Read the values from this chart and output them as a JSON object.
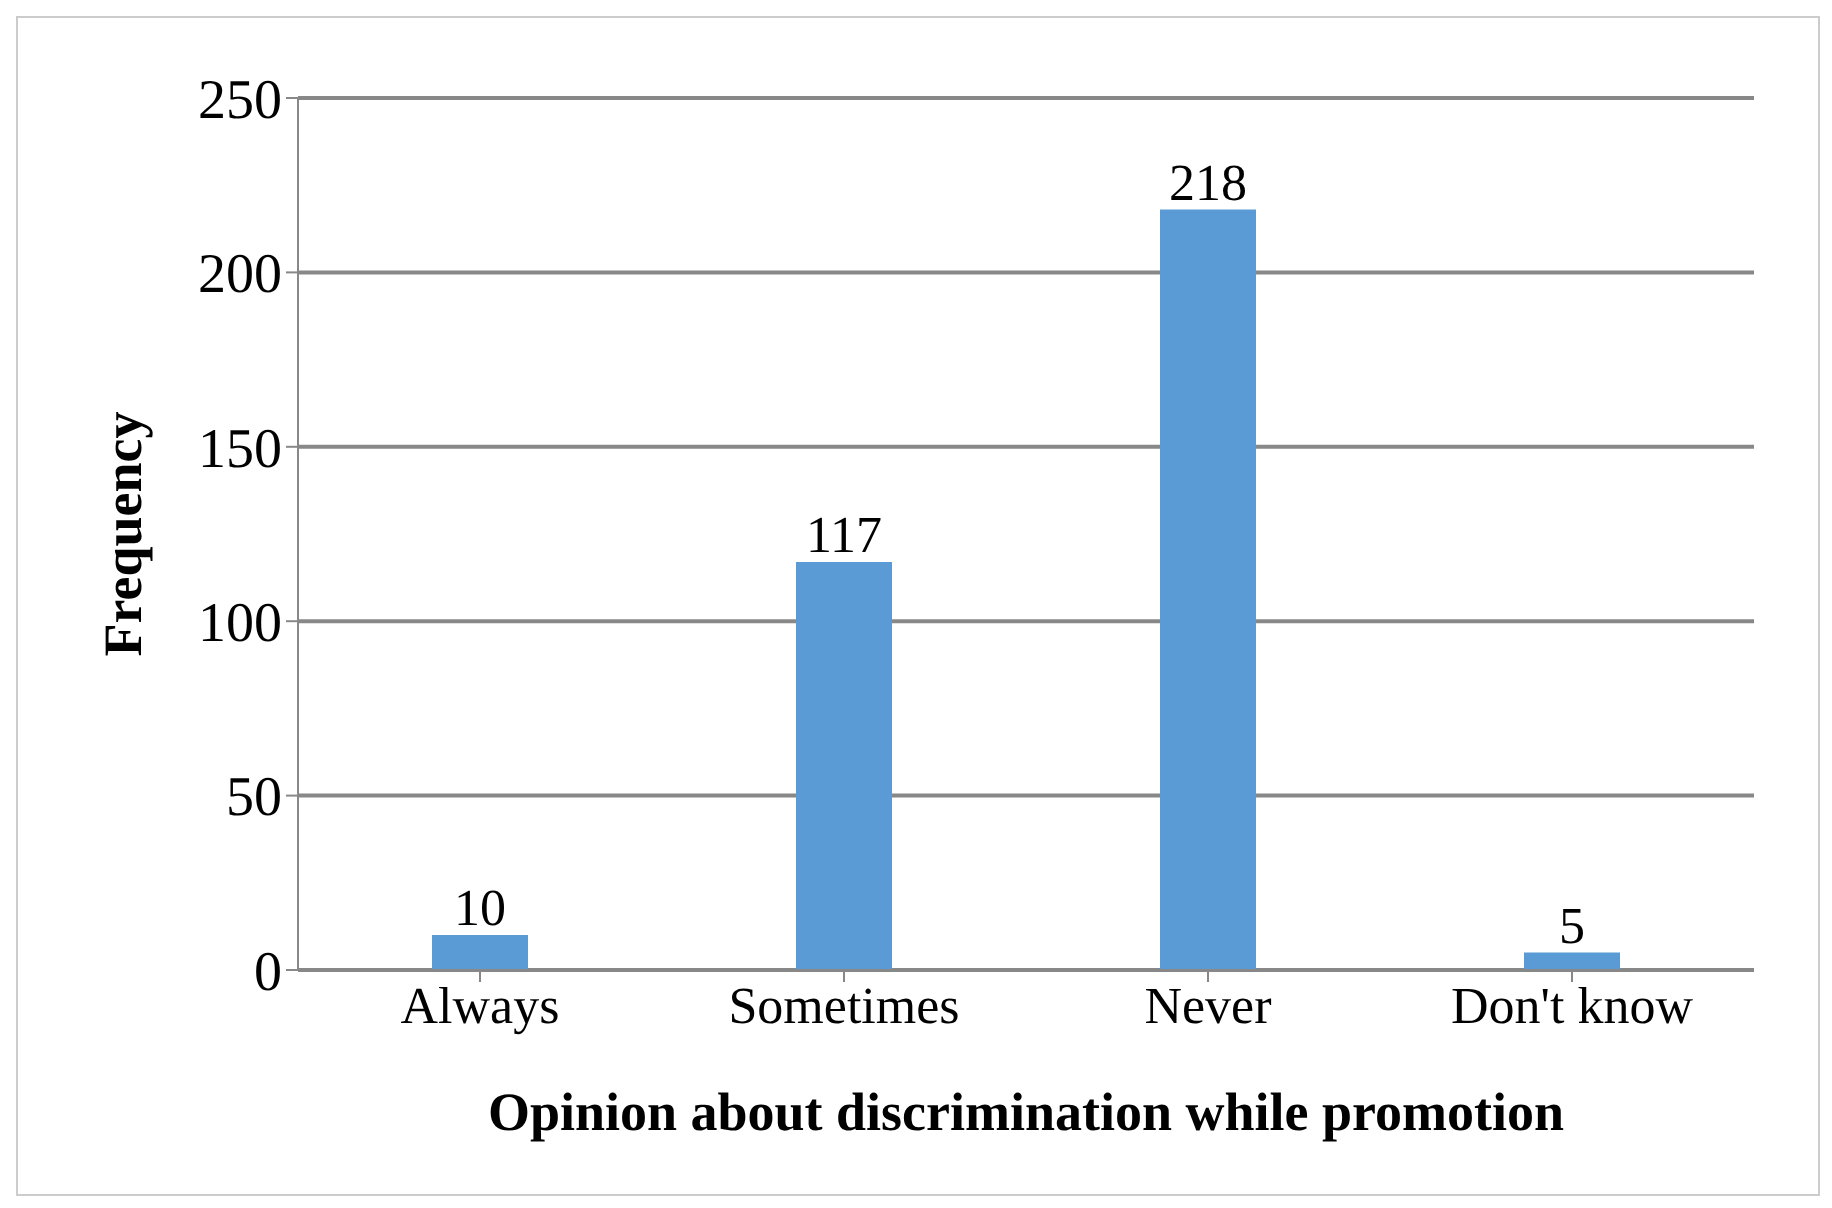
{
  "chart_data": {
    "type": "bar",
    "xlabel": "Opinion about discrimination while promotion",
    "ylabel": "Frequency",
    "categories": [
      "Always",
      "Sometimes",
      "Never",
      "Don't know"
    ],
    "values": [
      10,
      117,
      218,
      5
    ],
    "color": "#5b9bd5",
    "ylim": [
      0,
      250
    ],
    "yticks": [
      0,
      50,
      100,
      150,
      200,
      250
    ],
    "grid": "y",
    "data_labels": true
  }
}
